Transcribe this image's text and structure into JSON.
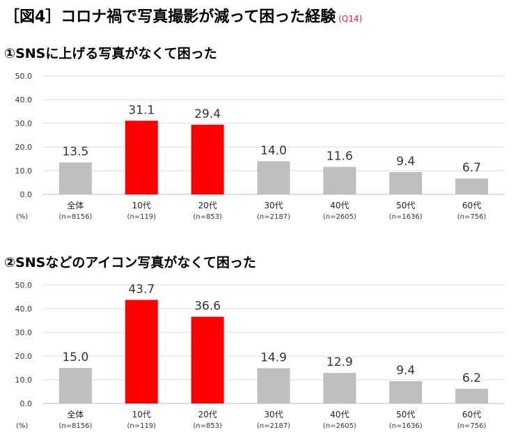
{
  "figure": {
    "title": "［図4］コロナ禍で写真撮影が減って困った経験",
    "code": "(Q14)"
  },
  "colors": {
    "highlight": "#ff0000",
    "normal": "#bfbfbf",
    "grid": "#d9d9d9"
  },
  "chart_data": [
    {
      "type": "bar",
      "title": "①SNSに上げる写真がなくて困った",
      "categories": [
        "全体",
        "10代",
        "20代",
        "30代",
        "40代",
        "50代",
        "60代"
      ],
      "sample_sizes": [
        "(n=8156)",
        "(n=119)",
        "(n=853)",
        "(n=2187)",
        "(n=2605)",
        "(n=1636)",
        "(n=756)"
      ],
      "values": [
        13.5,
        31.1,
        29.4,
        14.0,
        11.6,
        9.4,
        6.7
      ],
      "highlighted": [
        false,
        true,
        true,
        false,
        false,
        false,
        false
      ],
      "ylim": [
        0,
        50
      ],
      "yticks": [
        "0.0",
        "10.0",
        "20.0",
        "30.0",
        "40.0",
        "50.0"
      ],
      "unit_label": "(%)"
    },
    {
      "type": "bar",
      "title": "②SNSなどのアイコン写真がなくて困った",
      "categories": [
        "全体",
        "10代",
        "20代",
        "30代",
        "40代",
        "50代",
        "60代"
      ],
      "sample_sizes": [
        "(n=8156)",
        "(n=119)",
        "(n=853)",
        "(n=2187)",
        "(n=2605)",
        "(n=1636)",
        "(n=756)"
      ],
      "values": [
        15.0,
        43.7,
        36.6,
        14.9,
        12.9,
        9.4,
        6.2
      ],
      "highlighted": [
        false,
        true,
        true,
        false,
        false,
        false,
        false
      ],
      "ylim": [
        0,
        50
      ],
      "yticks": [
        "0.0",
        "10.0",
        "20.0",
        "30.0",
        "40.0",
        "50.0"
      ],
      "unit_label": "(%)"
    }
  ]
}
